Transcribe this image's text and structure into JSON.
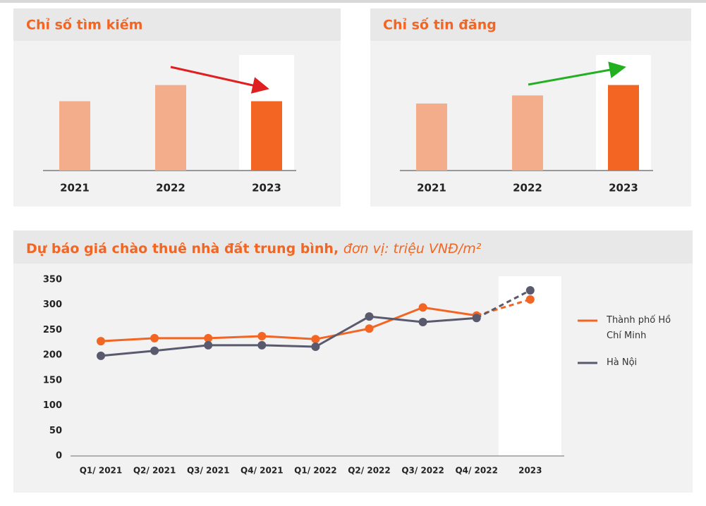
{
  "chart_data": [
    {
      "type": "bar",
      "title": "Chỉ số tìm kiếm",
      "categories": [
        "2021",
        "2022",
        "2023"
      ],
      "values": [
        60,
        74,
        60
      ],
      "colors": [
        "#f4ad8a",
        "#f4ad8a",
        "#f26522"
      ],
      "ylim": [
        0,
        100
      ],
      "highlight_last": true
    },
    {
      "type": "bar",
      "title": "Chỉ số tin đăng",
      "categories": [
        "2021",
        "2022",
        "2023"
      ],
      "values": [
        58,
        65,
        74
      ],
      "colors": [
        "#f4ad8a",
        "#f4ad8a",
        "#f26522"
      ],
      "ylim": [
        0,
        100
      ],
      "highlight_last": true
    },
    {
      "type": "line",
      "title": "Dự báo giá chào thuê nhà đất trung bình,",
      "subtitle": "đơn vị: triệu VNĐ/m²",
      "categories": [
        "Q1/ 2021",
        "Q2/ 2021",
        "Q3/ 2021",
        "Q4/ 2021",
        "Q1/ 2022",
        "Q2/ 2022",
        "Q3/ 2022",
        "Q4/ 2022",
        "2023"
      ],
      "series": [
        {
          "name": "Thành phố Hồ Chí Minh",
          "color": "#f26522",
          "values": [
            228,
            234,
            234,
            238,
            232,
            253,
            295,
            279,
            311
          ]
        },
        {
          "name": "Hà Nội",
          "color": "#5a5a6e",
          "values": [
            199,
            209,
            220,
            220,
            217,
            277,
            266,
            274,
            329
          ]
        }
      ],
      "ylim": [
        0,
        350
      ],
      "yticks": [
        0,
        50,
        100,
        150,
        200,
        250,
        300,
        350
      ],
      "grid": false,
      "legend": "right",
      "dashed_last_segment": true,
      "highlight_last": true
    }
  ]
}
